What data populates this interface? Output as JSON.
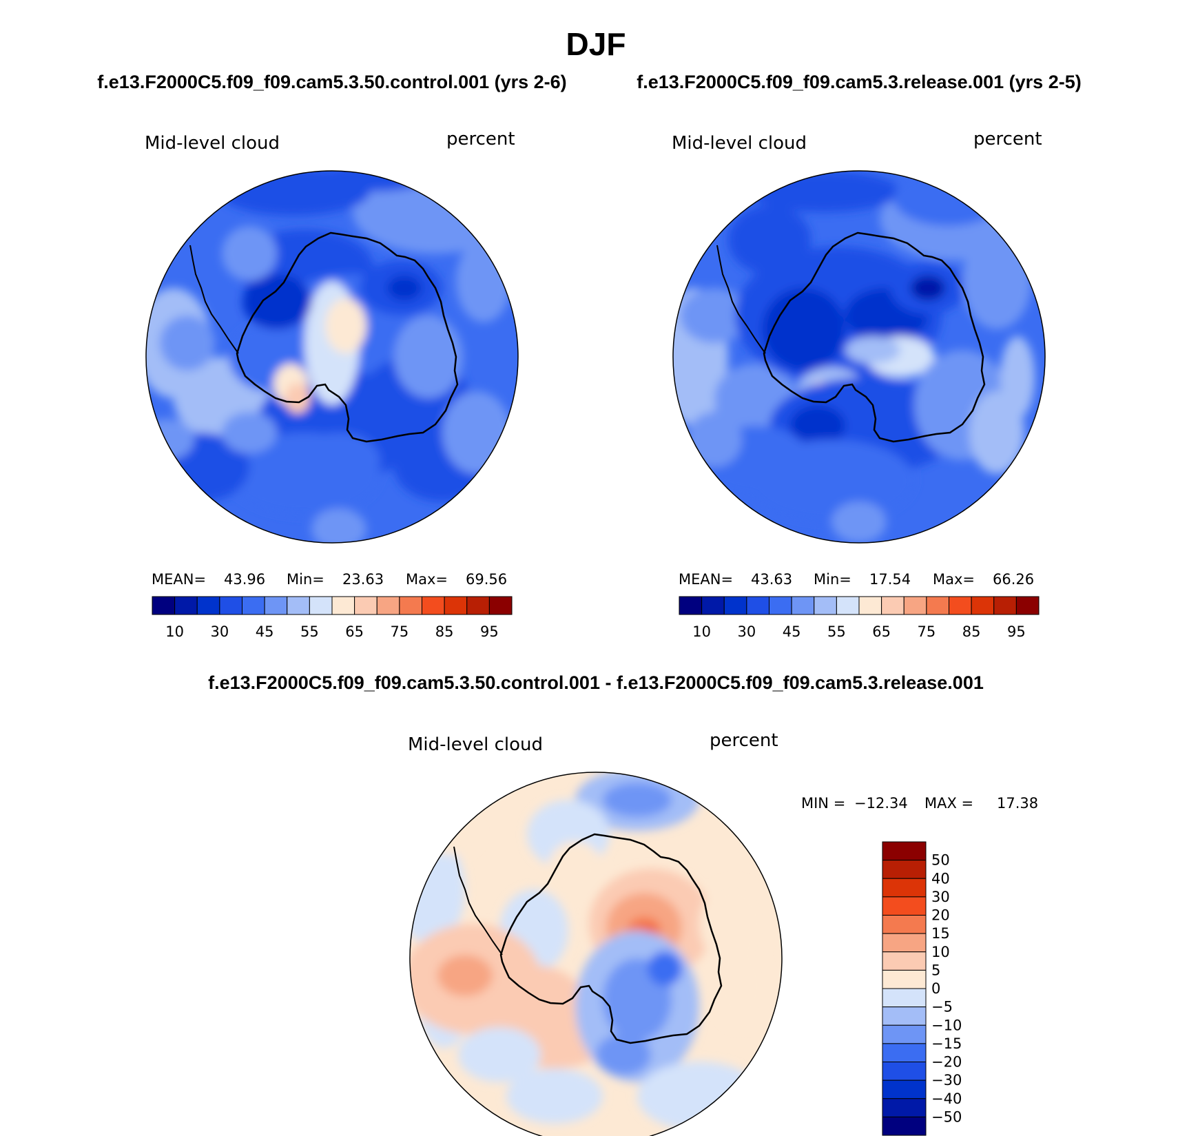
{
  "figure": {
    "title": "DJF",
    "left_case_title": "f.e13.F2000C5.f09_f09.cam5.3.50.control.001 (yrs 2-6)",
    "right_case_title": "f.e13.F2000C5.f09_f09.cam5.3.release.001 (yrs 2-5)",
    "diff_title": "f.e13.F2000C5.f09_f09.cam5.3.50.control.001 - f.e13.F2000C5.f09_f09.cam5.3.release.001"
  },
  "colors": {
    "absolute_scale": [
      "#00007f",
      "#0019a8",
      "#0033cc",
      "#1f4fe6",
      "#3b6df2",
      "#6e95f5",
      "#a3bdf7",
      "#d4e3fa",
      "#fde9d4",
      "#fbcbb3",
      "#f7a583",
      "#f47a4f",
      "#f34d1e",
      "#dc3407",
      "#b81f04",
      "#8b0000"
    ],
    "diff_scale": [
      "#8b0000",
      "#b81f04",
      "#dc3407",
      "#f34d1e",
      "#f47a4f",
      "#f7a583",
      "#fbcbb3",
      "#fde9d4",
      "#d4e3fa",
      "#a3bdf7",
      "#6e95f5",
      "#3b6df2",
      "#1f4fe6",
      "#0033cc",
      "#0019a8",
      "#00007f"
    ],
    "coastline": "#000000"
  },
  "chart_data": [
    {
      "type": "heatmap",
      "projection": "south-polar-stereographic",
      "title": "Mid-level cloud",
      "units": "percent",
      "stats": {
        "mean_label": "MEAN=",
        "mean": "43.96",
        "min_label": "Min=",
        "min": "23.63",
        "max_label": "Max=",
        "max": "69.56"
      },
      "colorbar": {
        "orientation": "horizontal",
        "levels": [
          5,
          10,
          20,
          30,
          40,
          45,
          50,
          55,
          60,
          65,
          70,
          75,
          80,
          85,
          90,
          95
        ],
        "tick_labels": [
          "10",
          "30",
          "45",
          "55",
          "65",
          "75",
          "85",
          "95"
        ]
      },
      "field_style": "control"
    },
    {
      "type": "heatmap",
      "projection": "south-polar-stereographic",
      "title": "Mid-level cloud",
      "units": "percent",
      "stats": {
        "mean_label": "MEAN=",
        "mean": "43.63",
        "min_label": "Min=",
        "min": "17.54",
        "max_label": "Max=",
        "max": "66.26"
      },
      "colorbar": {
        "orientation": "horizontal",
        "levels": [
          5,
          10,
          20,
          30,
          40,
          45,
          50,
          55,
          60,
          65,
          70,
          75,
          80,
          85,
          90,
          95
        ],
        "tick_labels": [
          "10",
          "30",
          "45",
          "55",
          "65",
          "75",
          "85",
          "95"
        ]
      },
      "field_style": "release"
    },
    {
      "type": "heatmap",
      "projection": "south-polar-stereographic",
      "title": "Mid-level cloud",
      "units": "percent",
      "stats": {
        "min_label": "MIN =",
        "min": "−12.34",
        "max_label": "MAX =",
        "max": "17.38"
      },
      "colorbar": {
        "orientation": "vertical",
        "levels": [
          50,
          40,
          30,
          20,
          15,
          10,
          5,
          0,
          -5,
          -10,
          -15,
          -20,
          -30,
          -40,
          -50
        ],
        "tick_labels": [
          "50",
          "40",
          "30",
          "20",
          "15",
          "10",
          "5",
          "0",
          "−5",
          "−10",
          "−15",
          "−20",
          "−30",
          "−40",
          "−50"
        ]
      },
      "field_style": "difference"
    }
  ]
}
